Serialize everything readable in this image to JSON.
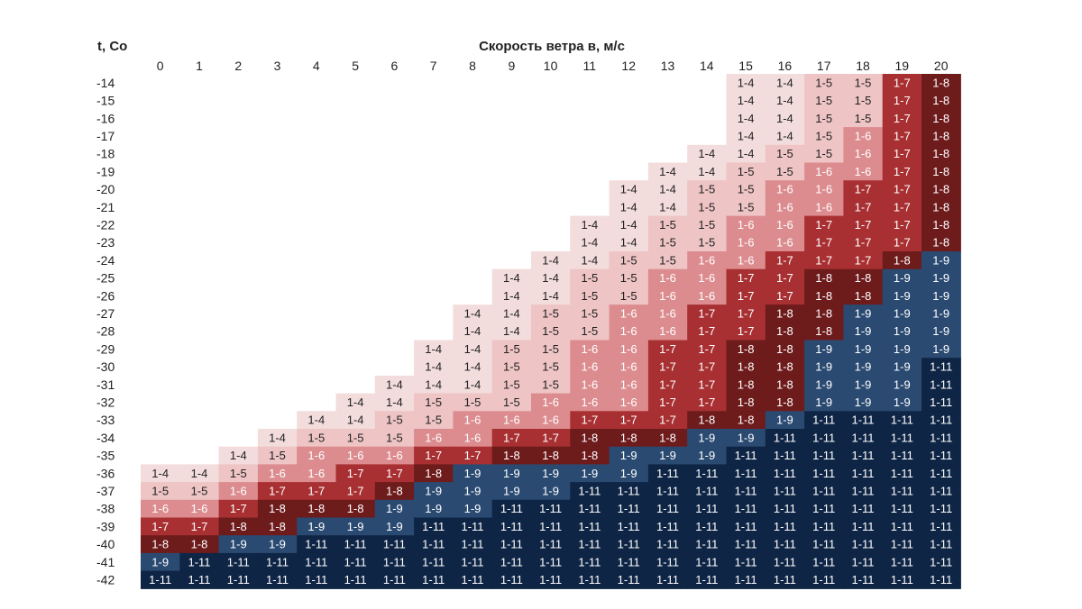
{
  "chart_data": {
    "type": "heatmap",
    "title": "",
    "xlabel": "Скорость ветра в, м/с",
    "ylabel": "t, Co",
    "x": [
      0,
      1,
      2,
      3,
      4,
      5,
      6,
      7,
      8,
      9,
      10,
      11,
      12,
      13,
      14,
      15,
      16,
      17,
      18,
      19,
      20
    ],
    "y": [
      -14,
      -15,
      -16,
      -17,
      -18,
      -19,
      -20,
      -21,
      -22,
      -23,
      -24,
      -25,
      -26,
      -27,
      -28,
      -29,
      -30,
      -31,
      -32,
      -33,
      -34,
      -35,
      -36,
      -37,
      -38,
      -39,
      -40,
      -41,
      -42
    ],
    "rows": [
      [
        "",
        "",
        "",
        "",
        "",
        "",
        "",
        "",
        "",
        "",
        "",
        "",
        "",
        "",
        "",
        "1-4",
        "1-4",
        "1-5",
        "1-5",
        "1-7",
        "1-8"
      ],
      [
        "",
        "",
        "",
        "",
        "",
        "",
        "",
        "",
        "",
        "",
        "",
        "",
        "",
        "",
        "",
        "1-4",
        "1-4",
        "1-5",
        "1-5",
        "1-7",
        "1-8"
      ],
      [
        "",
        "",
        "",
        "",
        "",
        "",
        "",
        "",
        "",
        "",
        "",
        "",
        "",
        "",
        "",
        "1-4",
        "1-4",
        "1-5",
        "1-5",
        "1-7",
        "1-8"
      ],
      [
        "",
        "",
        "",
        "",
        "",
        "",
        "",
        "",
        "",
        "",
        "",
        "",
        "",
        "",
        "",
        "1-4",
        "1-4",
        "1-5",
        "1-6",
        "1-7",
        "1-8"
      ],
      [
        "",
        "",
        "",
        "",
        "",
        "",
        "",
        "",
        "",
        "",
        "",
        "",
        "",
        "",
        "1-4",
        "1-4",
        "1-5",
        "1-5",
        "1-6",
        "1-7",
        "1-8"
      ],
      [
        "",
        "",
        "",
        "",
        "",
        "",
        "",
        "",
        "",
        "",
        "",
        "",
        "",
        "1-4",
        "1-4",
        "1-5",
        "1-5",
        "1-6",
        "1-6",
        "1-7",
        "1-8"
      ],
      [
        "",
        "",
        "",
        "",
        "",
        "",
        "",
        "",
        "",
        "",
        "",
        "",
        "1-4",
        "1-4",
        "1-5",
        "1-5",
        "1-6",
        "1-6",
        "1-7",
        "1-7",
        "1-8"
      ],
      [
        "",
        "",
        "",
        "",
        "",
        "",
        "",
        "",
        "",
        "",
        "",
        "",
        "1-4",
        "1-4",
        "1-5",
        "1-5",
        "1-6",
        "1-6",
        "1-7",
        "1-7",
        "1-8"
      ],
      [
        "",
        "",
        "",
        "",
        "",
        "",
        "",
        "",
        "",
        "",
        "",
        "1-4",
        "1-4",
        "1-5",
        "1-5",
        "1-6",
        "1-6",
        "1-7",
        "1-7",
        "1-7",
        "1-8"
      ],
      [
        "",
        "",
        "",
        "",
        "",
        "",
        "",
        "",
        "",
        "",
        "",
        "1-4",
        "1-4",
        "1-5",
        "1-5",
        "1-6",
        "1-6",
        "1-7",
        "1-7",
        "1-7",
        "1-8"
      ],
      [
        "",
        "",
        "",
        "",
        "",
        "",
        "",
        "",
        "",
        "",
        "1-4",
        "1-4",
        "1-5",
        "1-5",
        "1-6",
        "1-6",
        "1-7",
        "1-7",
        "1-7",
        "1-8",
        "1-9"
      ],
      [
        "",
        "",
        "",
        "",
        "",
        "",
        "",
        "",
        "",
        "1-4",
        "1-4",
        "1-5",
        "1-5",
        "1-6",
        "1-6",
        "1-7",
        "1-7",
        "1-8",
        "1-8",
        "1-9",
        "1-9"
      ],
      [
        "",
        "",
        "",
        "",
        "",
        "",
        "",
        "",
        "",
        "1-4",
        "1-4",
        "1-5",
        "1-5",
        "1-6",
        "1-6",
        "1-7",
        "1-7",
        "1-8",
        "1-8",
        "1-9",
        "1-9"
      ],
      [
        "",
        "",
        "",
        "",
        "",
        "",
        "",
        "",
        "1-4",
        "1-4",
        "1-5",
        "1-5",
        "1-6",
        "1-6",
        "1-7",
        "1-7",
        "1-8",
        "1-8",
        "1-9",
        "1-9",
        "1-9"
      ],
      [
        "",
        "",
        "",
        "",
        "",
        "",
        "",
        "",
        "1-4",
        "1-4",
        "1-5",
        "1-5",
        "1-6",
        "1-6",
        "1-7",
        "1-7",
        "1-8",
        "1-8",
        "1-9",
        "1-9",
        "1-9"
      ],
      [
        "",
        "",
        "",
        "",
        "",
        "",
        "",
        "1-4",
        "1-4",
        "1-5",
        "1-5",
        "1-6",
        "1-6",
        "1-7",
        "1-7",
        "1-8",
        "1-8",
        "1-9",
        "1-9",
        "1-9",
        "1-9"
      ],
      [
        "",
        "",
        "",
        "",
        "",
        "",
        "",
        "1-4",
        "1-4",
        "1-5",
        "1-5",
        "1-6",
        "1-6",
        "1-7",
        "1-7",
        "1-8",
        "1-8",
        "1-9",
        "1-9",
        "1-9",
        "1-11"
      ],
      [
        "",
        "",
        "",
        "",
        "",
        "",
        "1-4",
        "1-4",
        "1-4",
        "1-5",
        "1-5",
        "1-6",
        "1-6",
        "1-7",
        "1-7",
        "1-8",
        "1-8",
        "1-9",
        "1-9",
        "1-9",
        "1-11"
      ],
      [
        "",
        "",
        "",
        "",
        "",
        "1-4",
        "1-4",
        "1-5",
        "1-5",
        "1-5",
        "1-6",
        "1-6",
        "1-6",
        "1-7",
        "1-7",
        "1-8",
        "1-8",
        "1-9",
        "1-9",
        "1-9",
        "1-11"
      ],
      [
        "",
        "",
        "",
        "",
        "1-4",
        "1-4",
        "1-5",
        "1-5",
        "1-6",
        "1-6",
        "1-6",
        "1-7",
        "1-7",
        "1-7",
        "1-8",
        "1-8",
        "1-9",
        "1-11",
        "1-11",
        "1-11",
        "1-11"
      ],
      [
        "",
        "",
        "",
        "1-4",
        "1-5",
        "1-5",
        "1-5",
        "1-6",
        "1-6",
        "1-7",
        "1-7",
        "1-8",
        "1-8",
        "1-8",
        "1-9",
        "1-9",
        "1-11",
        "1-11",
        "1-11",
        "1-11",
        "1-11"
      ],
      [
        "",
        "",
        "1-4",
        "1-5",
        "1-6",
        "1-6",
        "1-6",
        "1-7",
        "1-7",
        "1-8",
        "1-8",
        "1-8",
        "1-9",
        "1-9",
        "1-9",
        "1-11",
        "1-11",
        "1-11",
        "1-11",
        "1-11",
        "1-11"
      ],
      [
        "1-4",
        "1-4",
        "1-5",
        "1-6",
        "1-6",
        "1-7",
        "1-7",
        "1-8",
        "1-9",
        "1-9",
        "1-9",
        "1-9",
        "1-9",
        "1-11",
        "1-11",
        "1-11",
        "1-11",
        "1-11",
        "1-11",
        "1-11",
        "1-11"
      ],
      [
        "1-5",
        "1-5",
        "1-6",
        "1-7",
        "1-7",
        "1-7",
        "1-8",
        "1-9",
        "1-9",
        "1-9",
        "1-9",
        "1-11",
        "1-11",
        "1-11",
        "1-11",
        "1-11",
        "1-11",
        "1-11",
        "1-11",
        "1-11",
        "1-11"
      ],
      [
        "1-6",
        "1-6",
        "1-7",
        "1-8",
        "1-8",
        "1-8",
        "1-9",
        "1-9",
        "1-9",
        "1-11",
        "1-11",
        "1-11",
        "1-11",
        "1-11",
        "1-11",
        "1-11",
        "1-11",
        "1-11",
        "1-11",
        "1-11",
        "1-11"
      ],
      [
        "1-7",
        "1-7",
        "1-8",
        "1-8",
        "1-9",
        "1-9",
        "1-9",
        "1-11",
        "1-11",
        "1-11",
        "1-11",
        "1-11",
        "1-11",
        "1-11",
        "1-11",
        "1-11",
        "1-11",
        "1-11",
        "1-11",
        "1-11",
        "1-11"
      ],
      [
        "1-8",
        "1-8",
        "1-9",
        "1-9",
        "1-11",
        "1-11",
        "1-11",
        "1-11",
        "1-11",
        "1-11",
        "1-11",
        "1-11",
        "1-11",
        "1-11",
        "1-11",
        "1-11",
        "1-11",
        "1-11",
        "1-11",
        "1-11",
        "1-11"
      ],
      [
        "1-9",
        "1-11",
        "1-11",
        "1-11",
        "1-11",
        "1-11",
        "1-11",
        "1-11",
        "1-11",
        "1-11",
        "1-11",
        "1-11",
        "1-11",
        "1-11",
        "1-11",
        "1-11",
        "1-11",
        "1-11",
        "1-11",
        "1-11",
        "1-11"
      ],
      [
        "1-11",
        "1-11",
        "1-11",
        "1-11",
        "1-11",
        "1-11",
        "1-11",
        "1-11",
        "1-11",
        "1-11",
        "1-11",
        "1-11",
        "1-11",
        "1-11",
        "1-11",
        "1-11",
        "1-11",
        "1-11",
        "1-11",
        "1-11",
        "1-11"
      ]
    ],
    "colors": {
      "1-4": "#f3dcdc",
      "1-5": "#eec4c5",
      "1-6": "#dc8c8f",
      "1-7": "#a83032",
      "1-8": "#6e1b1c",
      "1-9": "#2a4a72",
      "1-11": "#0f2545"
    },
    "grid": false,
    "legend": "none"
  }
}
